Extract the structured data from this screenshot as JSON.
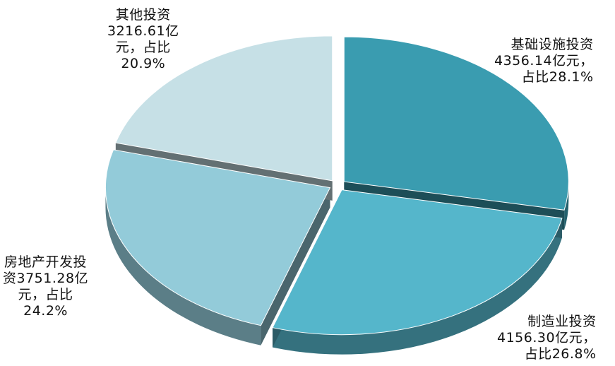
{
  "chart_data": {
    "type": "pie",
    "style": "3d-exploded",
    "unit": "亿元",
    "slices": [
      {
        "name": "基础设施投资",
        "value": 4356.14,
        "percent": 28.1,
        "color": "#3a9cb0",
        "label_lines": [
          "基础设施投资",
          "4356.14亿元，",
          "占比28.1%"
        ]
      },
      {
        "name": "制造业投资",
        "value": 4156.3,
        "percent": 26.8,
        "color": "#55b6cb",
        "label_lines": [
          "制造业投资",
          "4156.30亿元，",
          "占比26.8%"
        ]
      },
      {
        "name": "房地产开发投资",
        "value": 3751.28,
        "percent": 24.2,
        "color": "#93cbd9",
        "label_lines": [
          "房地产开发投",
          "资3751.28亿",
          "元，占比",
          "24.2%"
        ]
      },
      {
        "name": "其他投资",
        "value": 3216.61,
        "percent": 20.9,
        "color": "#c6e0e6",
        "label_lines": [
          "其他投资",
          "3216.61亿",
          "元，占比",
          "20.9%"
        ]
      }
    ]
  }
}
